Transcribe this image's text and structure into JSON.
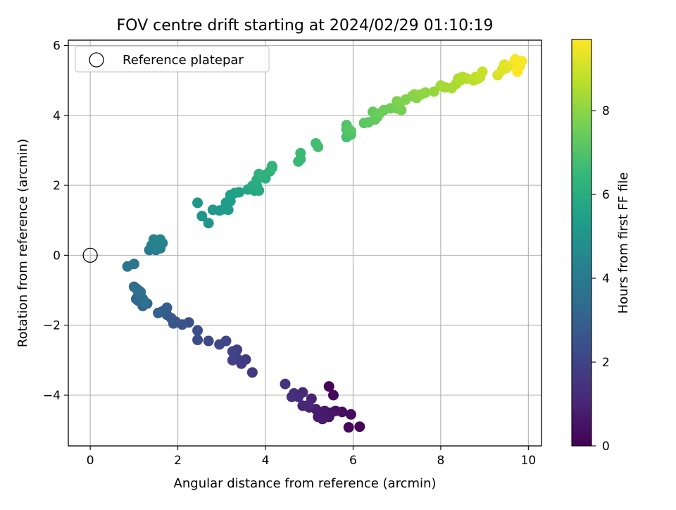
{
  "chart_data": {
    "type": "scatter",
    "title": "FOV centre drift starting at 2024/02/29 01:10:19",
    "xlabel": "Angular distance from reference (arcmin)",
    "ylabel": "Rotation from reference (arcmin)",
    "xlim": [
      -0.5,
      10.3
    ],
    "ylim": [
      -5.45,
      6.15
    ],
    "xticks": [
      0,
      2,
      4,
      6,
      8,
      10
    ],
    "yticks": [
      -4,
      -2,
      0,
      2,
      4,
      6
    ],
    "xtick_labels": [
      "0",
      "2",
      "4",
      "6",
      "8",
      "10"
    ],
    "ytick_labels": [
      "−4",
      "−2",
      "0",
      "2",
      "4",
      "6"
    ],
    "grid": true,
    "legend": {
      "position": "top-left",
      "entries": [
        "Reference platepar"
      ]
    },
    "reference_point": {
      "x": 0,
      "y": 0,
      "marker": "open-circle"
    },
    "colorbar": {
      "label": "Hours from first FF file",
      "colormap": "viridis",
      "range": [
        0,
        9.7
      ],
      "ticks": [
        0,
        2,
        4,
        6,
        8
      ],
      "tick_labels": [
        "0",
        "2",
        "4",
        "6",
        "8"
      ]
    },
    "colormap_stops": [
      "#440154",
      "#482878",
      "#3e4989",
      "#31688e",
      "#26828e",
      "#1f9e89",
      "#35b779",
      "#6ece58",
      "#b5de2b",
      "#fde725"
    ],
    "points": [
      [
        5.45,
        -3.75,
        0.15
      ],
      [
        5.55,
        -4.0,
        0.2
      ],
      [
        6.15,
        -4.9,
        0.1
      ],
      [
        5.9,
        -4.92,
        0.2
      ],
      [
        5.95,
        -4.55,
        0.25
      ],
      [
        5.75,
        -4.48,
        0.35
      ],
      [
        5.6,
        -4.45,
        0.45
      ],
      [
        5.5,
        -4.5,
        0.55
      ],
      [
        5.45,
        -4.62,
        0.6
      ],
      [
        5.35,
        -4.45,
        0.65
      ],
      [
        5.2,
        -4.62,
        0.7
      ],
      [
        5.3,
        -4.68,
        0.75
      ],
      [
        5.15,
        -4.4,
        0.8
      ],
      [
        5.0,
        -4.35,
        0.9
      ],
      [
        5.05,
        -4.1,
        0.95
      ],
      [
        4.85,
        -4.3,
        1.0
      ],
      [
        4.95,
        -4.3,
        1.05
      ],
      [
        4.85,
        -3.92,
        1.1
      ],
      [
        4.65,
        -3.95,
        1.2
      ],
      [
        4.75,
        -4.05,
        1.25
      ],
      [
        4.6,
        -4.05,
        1.3
      ],
      [
        4.45,
        -3.68,
        1.45
      ],
      [
        3.7,
        -3.35,
        1.6
      ],
      [
        3.55,
        -2.98,
        1.7
      ],
      [
        3.45,
        -3.1,
        1.75
      ],
      [
        3.35,
        -2.95,
        1.8
      ],
      [
        3.25,
        -3.0,
        1.85
      ],
      [
        3.35,
        -2.7,
        1.9
      ],
      [
        3.25,
        -2.75,
        1.95
      ],
      [
        3.1,
        -2.45,
        2.05
      ],
      [
        2.95,
        -2.55,
        2.1
      ],
      [
        2.7,
        -2.45,
        2.15
      ],
      [
        2.45,
        -2.42,
        2.25
      ],
      [
        2.45,
        -2.15,
        2.3
      ],
      [
        2.25,
        -1.92,
        2.4
      ],
      [
        2.1,
        -1.98,
        2.5
      ],
      [
        1.95,
        -1.9,
        2.55
      ],
      [
        1.9,
        -1.95,
        2.6
      ],
      [
        1.85,
        -1.8,
        2.65
      ],
      [
        1.75,
        -1.7,
        2.75
      ],
      [
        1.75,
        -1.5,
        2.8
      ],
      [
        1.65,
        -1.6,
        2.9
      ],
      [
        1.55,
        -1.65,
        2.95
      ],
      [
        1.3,
        -1.38,
        3.05
      ],
      [
        1.2,
        -1.45,
        3.1
      ],
      [
        1.1,
        -1.3,
        3.15
      ],
      [
        1.05,
        -1.25,
        3.2
      ],
      [
        1.2,
        -1.25,
        3.25
      ],
      [
        1.1,
        -1.0,
        3.3
      ],
      [
        1.1,
        -1.12,
        3.35
      ],
      [
        1.0,
        -0.9,
        3.4
      ],
      [
        1.05,
        -0.95,
        3.5
      ],
      [
        1.15,
        -1.05,
        3.55
      ],
      [
        1.25,
        -1.35,
        3.6
      ],
      [
        1.0,
        -0.25,
        3.7
      ],
      [
        0.85,
        -0.32,
        3.8
      ],
      [
        1.35,
        0.15,
        4.0
      ],
      [
        1.5,
        0.15,
        4.1
      ],
      [
        1.6,
        0.2,
        4.15
      ],
      [
        1.4,
        0.28,
        4.2
      ],
      [
        1.55,
        0.3,
        4.25
      ],
      [
        1.65,
        0.35,
        4.3
      ],
      [
        1.45,
        0.45,
        4.35
      ],
      [
        1.6,
        0.45,
        4.4
      ],
      [
        2.7,
        0.92,
        5.0
      ],
      [
        2.55,
        1.12,
        5.05
      ],
      [
        2.45,
        1.5,
        5.1
      ],
      [
        2.8,
        1.3,
        5.15
      ],
      [
        2.95,
        1.28,
        5.2
      ],
      [
        3.05,
        1.32,
        5.25
      ],
      [
        3.15,
        1.3,
        5.3
      ],
      [
        3.1,
        1.5,
        5.35
      ],
      [
        3.2,
        1.55,
        5.4
      ],
      [
        3.2,
        1.72,
        5.45
      ],
      [
        3.3,
        1.78,
        5.5
      ],
      [
        3.4,
        1.8,
        5.55
      ],
      [
        3.6,
        1.88,
        5.7
      ],
      [
        3.75,
        1.85,
        5.75
      ],
      [
        3.8,
        1.92,
        5.8
      ],
      [
        3.85,
        1.85,
        5.85
      ],
      [
        3.7,
        1.98,
        5.9
      ],
      [
        3.8,
        2.0,
        5.95
      ],
      [
        3.8,
        2.15,
        6.0
      ],
      [
        3.9,
        2.25,
        6.05
      ],
      [
        4.0,
        2.2,
        6.1
      ],
      [
        4.0,
        2.3,
        6.15
      ],
      [
        3.85,
        2.32,
        6.2
      ],
      [
        4.1,
        2.4,
        6.25
      ],
      [
        4.15,
        2.5,
        6.3
      ],
      [
        4.15,
        2.55,
        6.35
      ],
      [
        4.75,
        2.68,
        6.5
      ],
      [
        4.8,
        2.75,
        6.55
      ],
      [
        4.8,
        2.92,
        6.6
      ],
      [
        5.15,
        3.2,
        6.7
      ],
      [
        5.2,
        3.1,
        6.75
      ],
      [
        5.85,
        3.38,
        6.8
      ],
      [
        5.9,
        3.5,
        6.85
      ],
      [
        5.85,
        3.6,
        6.9
      ],
      [
        5.95,
        3.45,
        6.95
      ],
      [
        5.85,
        3.72,
        7.0
      ],
      [
        5.95,
        3.55,
        7.05
      ],
      [
        5.9,
        3.6,
        7.1
      ],
      [
        6.25,
        3.78,
        7.2
      ],
      [
        6.35,
        3.8,
        7.25
      ],
      [
        6.5,
        3.88,
        7.3
      ],
      [
        6.45,
        4.1,
        7.35
      ],
      [
        6.55,
        3.95,
        7.4
      ],
      [
        6.6,
        4.05,
        7.45
      ],
      [
        6.7,
        4.15,
        7.5
      ],
      [
        6.85,
        4.2,
        7.55
      ],
      [
        7.0,
        4.2,
        7.6
      ],
      [
        7.05,
        4.3,
        7.65
      ],
      [
        7.1,
        4.15,
        7.7
      ],
      [
        7.0,
        4.4,
        7.75
      ],
      [
        7.2,
        4.45,
        7.8
      ],
      [
        7.35,
        4.55,
        7.85
      ],
      [
        7.45,
        4.5,
        7.9
      ],
      [
        7.4,
        4.6,
        7.95
      ],
      [
        7.55,
        4.6,
        8.0
      ],
      [
        7.65,
        4.65,
        8.05
      ],
      [
        7.85,
        4.68,
        8.15
      ],
      [
        8.0,
        4.85,
        8.3
      ],
      [
        8.1,
        4.8,
        8.35
      ],
      [
        8.25,
        4.78,
        8.4
      ],
      [
        8.35,
        4.9,
        8.45
      ],
      [
        8.4,
        5.05,
        8.5
      ],
      [
        8.45,
        5.0,
        8.55
      ],
      [
        8.5,
        5.1,
        8.6
      ],
      [
        8.6,
        5.05,
        8.65
      ],
      [
        8.75,
        5.0,
        8.7
      ],
      [
        8.8,
        5.1,
        8.75
      ],
      [
        8.85,
        5.05,
        8.8
      ],
      [
        8.9,
        5.1,
        8.85
      ],
      [
        8.95,
        5.25,
        8.9
      ],
      [
        9.3,
        5.15,
        9.15
      ],
      [
        9.4,
        5.3,
        9.2
      ],
      [
        9.45,
        5.45,
        9.25
      ],
      [
        9.5,
        5.35,
        9.3
      ],
      [
        9.55,
        5.4,
        9.35
      ],
      [
        9.65,
        5.45,
        9.4
      ],
      [
        9.7,
        5.5,
        9.45
      ],
      [
        9.75,
        5.35,
        9.5
      ],
      [
        9.8,
        5.4,
        9.55
      ],
      [
        9.85,
        5.55,
        9.6
      ],
      [
        9.7,
        5.6,
        9.65
      ],
      [
        9.75,
        5.25,
        9.7
      ]
    ]
  }
}
